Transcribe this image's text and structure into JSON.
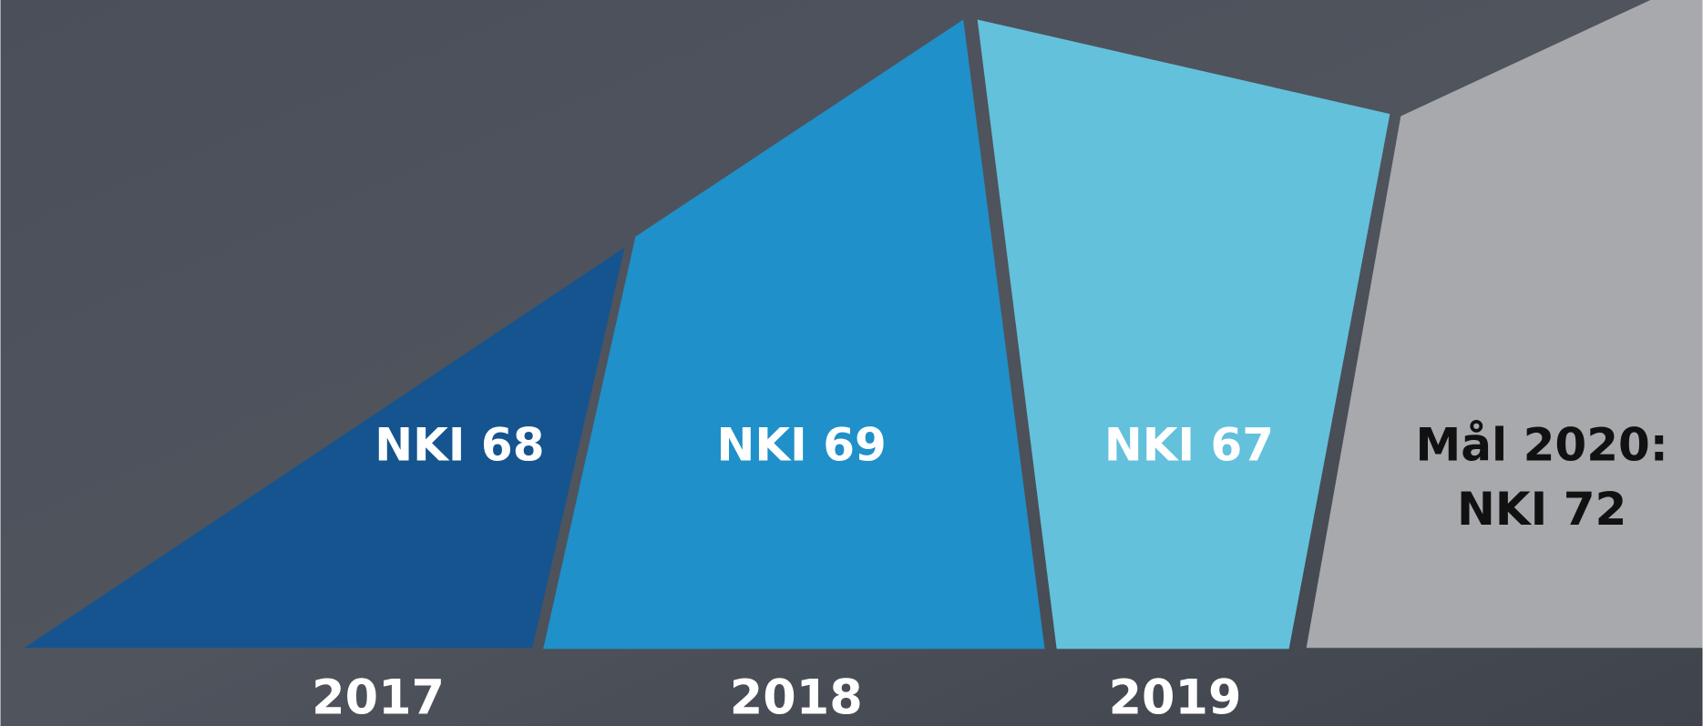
{
  "segments": [
    {
      "label": "NKI 68",
      "year": "2017"
    },
    {
      "label": "NKI 69",
      "year": "2018"
    },
    {
      "label": "NKI 67",
      "year": "2019"
    }
  ],
  "goal": {
    "line1": "Mål 2020:",
    "line2": "NKI 72"
  }
}
